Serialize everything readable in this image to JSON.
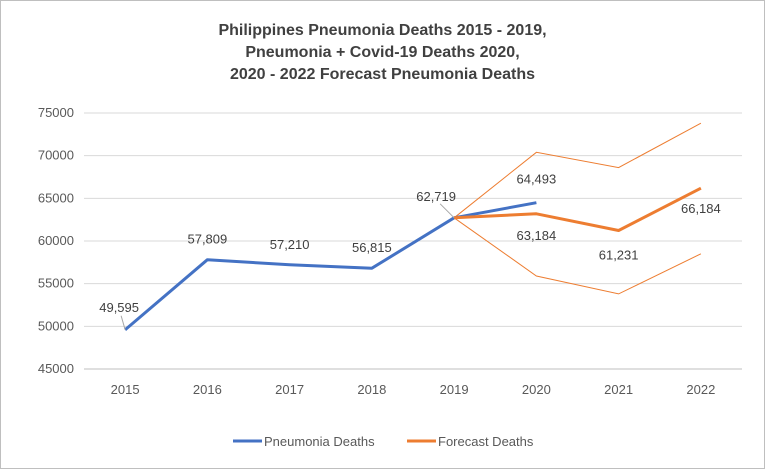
{
  "title_lines": [
    "Philippines Pneumonia Deaths 2015 - 2019,",
    "Pneumonia + Covid-19 Deaths 2020,",
    "2020 - 2022  Forecast Pneumonia Deaths"
  ],
  "colors": {
    "pneumonia": "#4472c4",
    "forecast": "#ed7d31",
    "grid": "#d9d9d9",
    "axis": "#bfbfbf"
  },
  "chart_data": {
    "type": "line",
    "title": "Philippines Pneumonia Deaths 2015 - 2019, Pneumonia + Covid-19 Deaths 2020, 2020 - 2022  Forecast Pneumonia Deaths",
    "categories": [
      "2015",
      "2016",
      "2017",
      "2018",
      "2019",
      "2020",
      "2021",
      "2022"
    ],
    "y_ticks": [
      "45000",
      "50000",
      "55000",
      "60000",
      "65000",
      "70000",
      "75000"
    ],
    "ylim": [
      45000,
      75000
    ],
    "grid": true,
    "legend_position": "bottom",
    "series": [
      {
        "name": "Pneumonia Deaths",
        "values": [
          49595,
          57809,
          57210,
          56815,
          62719,
          64493,
          null,
          null
        ],
        "labels": [
          "49,595",
          "57,809",
          "57,210",
          "56,815",
          "62,719",
          "64,493",
          null,
          null
        ]
      },
      {
        "name": "Forecast Deaths",
        "values": [
          null,
          null,
          null,
          null,
          62719,
          63184,
          61231,
          66184
        ],
        "labels": [
          null,
          null,
          null,
          null,
          null,
          "63,184",
          "61,231",
          "66,184"
        ]
      }
    ],
    "confidence_bounds": {
      "upper": [
        null,
        null,
        null,
        null,
        62719,
        70400,
        68600,
        73800
      ],
      "lower": [
        null,
        null,
        null,
        null,
        62719,
        55900,
        53800,
        58500
      ]
    }
  }
}
